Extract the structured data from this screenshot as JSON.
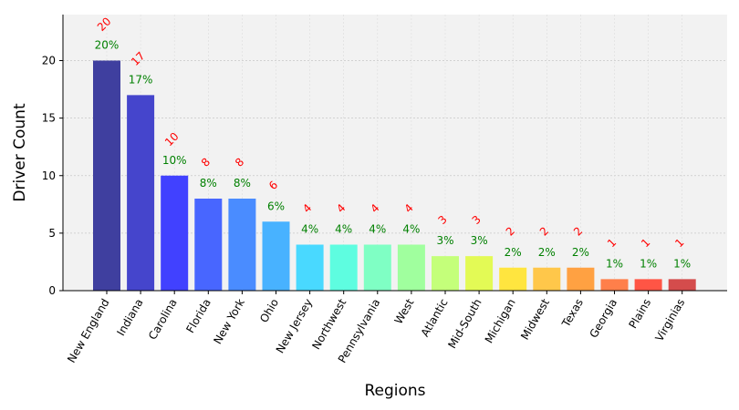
{
  "chart_data": {
    "type": "bar",
    "xlabel": "Regions",
    "ylabel": "Driver Count",
    "ylim": [
      0,
      24
    ],
    "yticks": [
      "0",
      "5",
      "10",
      "15",
      "20"
    ],
    "grid": true,
    "categories": [
      "New England",
      "Indiana",
      "Carolina",
      "Florida",
      "New York",
      "Ohio",
      "New Jersey",
      "Northwest",
      "Pennsylvania",
      "West",
      "Atlantic",
      "Mid-South",
      "Michigan",
      "Midwest",
      "Texas",
      "Georgia",
      "Plains",
      "Virginias"
    ],
    "values": [
      20,
      17,
      10,
      8,
      8,
      6,
      4,
      4,
      4,
      4,
      3,
      3,
      2,
      2,
      2,
      1,
      1,
      1
    ],
    "count_labels": [
      "20",
      "17",
      "10",
      "8",
      "8",
      "6",
      "4",
      "4",
      "4",
      "4",
      "3",
      "3",
      "2",
      "2",
      "2",
      "1",
      "1",
      "1"
    ],
    "percent_labels": [
      "20%",
      "17%",
      "10%",
      "8%",
      "8%",
      "6%",
      "4%",
      "4%",
      "4%",
      "4%",
      "3%",
      "3%",
      "2%",
      "2%",
      "2%",
      "1%",
      "1%",
      "1%"
    ],
    "colors": [
      "#3f3f9f",
      "#4545cc",
      "#4141ff",
      "#4866ff",
      "#4a8cff",
      "#48b2ff",
      "#49d9ff",
      "#5efde0",
      "#7fffc4",
      "#a0ff9e",
      "#c4ff7a",
      "#e3fa55",
      "#ffe53f",
      "#ffc74a",
      "#ffa142",
      "#ff7f4a",
      "#ff5545",
      "#d44c4c"
    ],
    "count_label_color": "#ff0000",
    "percent_label_color": "#008000",
    "plot_background": "#f2f2f2"
  }
}
